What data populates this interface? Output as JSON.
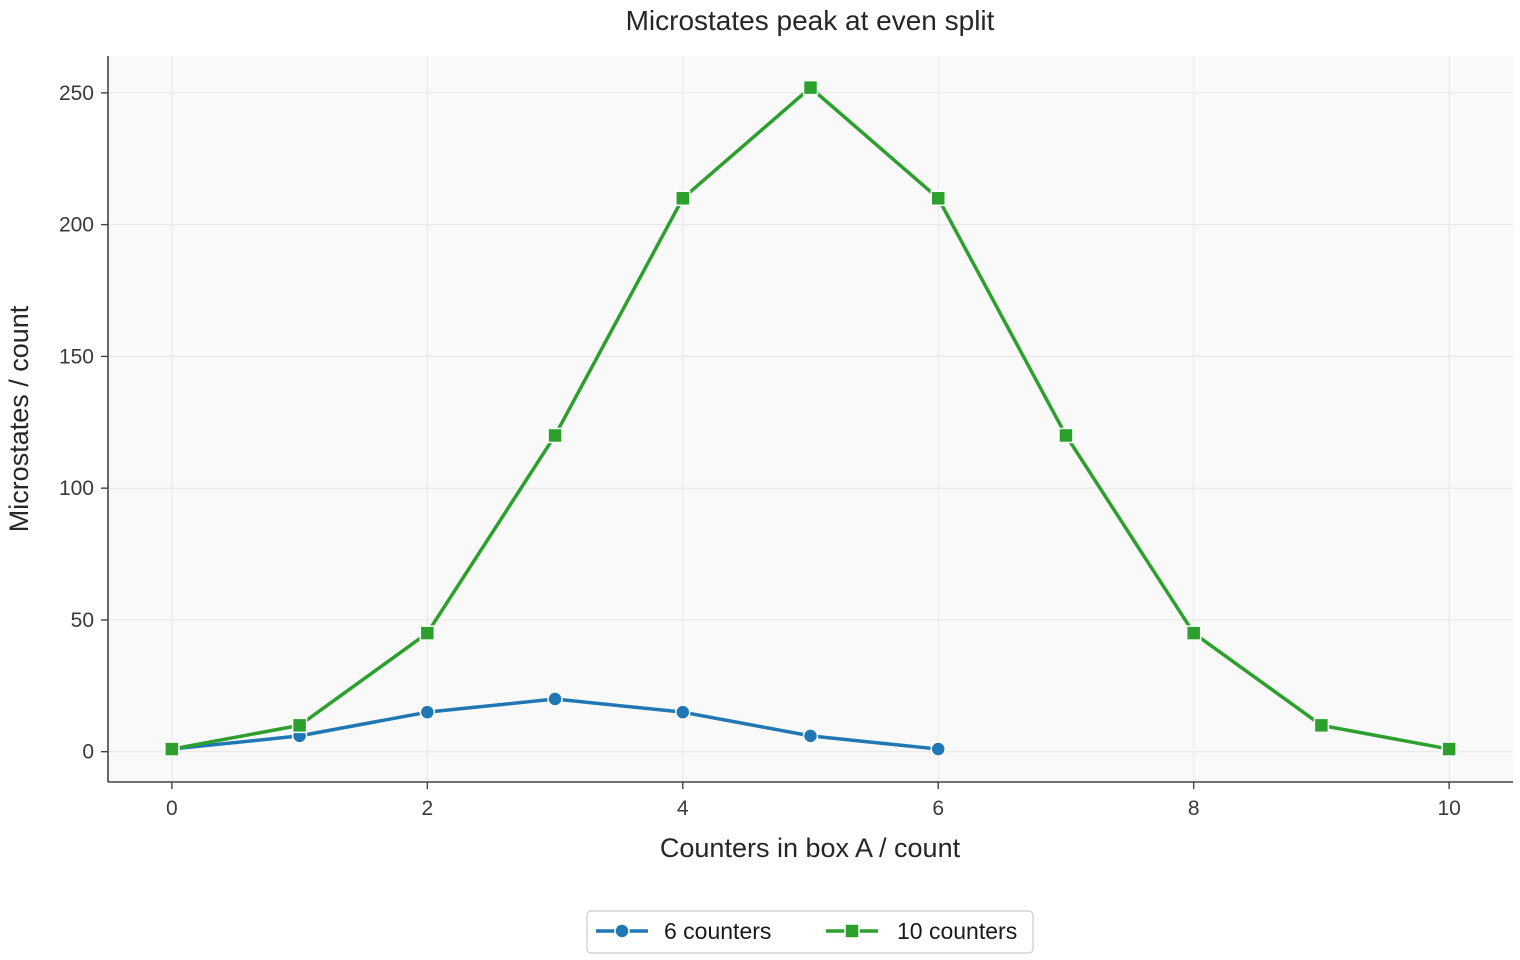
{
  "chart_data": {
    "type": "line",
    "title": "Microstates peak at even split",
    "xlabel": "Counters in box A / count",
    "ylabel": "Microstates / count",
    "xlim": [
      -0.5,
      10.5
    ],
    "ylim": [
      -11.5,
      264
    ],
    "xticks": [
      0,
      2,
      4,
      6,
      8,
      10
    ],
    "yticks": [
      0,
      50,
      100,
      150,
      200,
      250
    ],
    "grid": true,
    "legend": "bottom-center",
    "series": [
      {
        "name": "6 counters",
        "color": "#1f77b4",
        "marker": "circle",
        "x": [
          0,
          1,
          2,
          3,
          4,
          5,
          6
        ],
        "y": [
          1,
          6,
          15,
          20,
          15,
          6,
          1
        ]
      },
      {
        "name": "10 counters",
        "color": "#2ca02c",
        "marker": "square",
        "x": [
          0,
          1,
          2,
          3,
          4,
          5,
          6,
          7,
          8,
          9,
          10
        ],
        "y": [
          1,
          10,
          45,
          120,
          210,
          252,
          210,
          120,
          45,
          10,
          1
        ]
      }
    ]
  }
}
